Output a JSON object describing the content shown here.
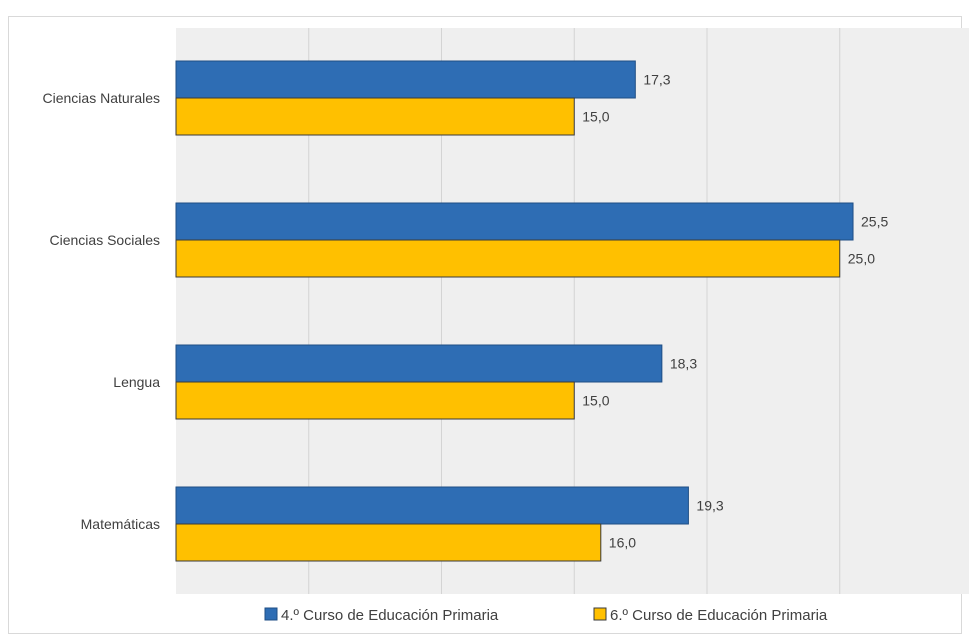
{
  "chart_data": {
    "type": "bar",
    "orientation": "horizontal",
    "categories": [
      "Ciencias Naturales",
      "Ciencias Sociales",
      "Lengua",
      "Matemáticas"
    ],
    "series": [
      {
        "name": "4.º Curso de Educación Primaria",
        "color": "#2e6db4",
        "values": [
          17.3,
          25.5,
          18.3,
          19.3
        ],
        "labels": [
          "17,3",
          "25,5",
          "18,3",
          "19,3"
        ]
      },
      {
        "name": "6.º Curso de Educación Primaria",
        "color": "#ffc000",
        "values": [
          15.0,
          25.0,
          15.0,
          16.0
        ],
        "labels": [
          "15,0",
          "25,0",
          "15,0",
          "16,0"
        ]
      }
    ],
    "xlim": [
      0,
      30
    ],
    "gridlines": true,
    "legend_position": "bottom",
    "plot_background": "#efefef"
  }
}
